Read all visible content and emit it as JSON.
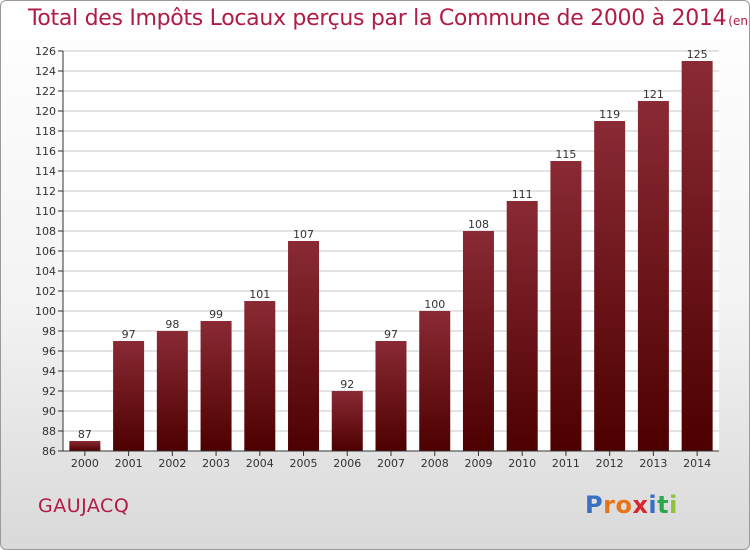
{
  "chart_data": {
    "type": "bar",
    "title": "Total des Impôts Locaux perçus par la Commune de 2000 à 2014",
    "unit_note": "(en milliers d'€)",
    "categories": [
      "2000",
      "2001",
      "2002",
      "2003",
      "2004",
      "2005",
      "2006",
      "2007",
      "2008",
      "2009",
      "2010",
      "2011",
      "2012",
      "2013",
      "2014"
    ],
    "values": [
      87,
      97,
      98,
      99,
      101,
      107,
      92,
      97,
      100,
      108,
      111,
      115,
      119,
      121,
      125
    ],
    "ylim": [
      86,
      126
    ],
    "yticks": [
      86,
      88,
      90,
      92,
      94,
      96,
      98,
      100,
      102,
      104,
      106,
      108,
      110,
      112,
      114,
      116,
      118,
      120,
      122,
      124,
      126
    ],
    "grid": true,
    "bar_color_top": "#8a2a34",
    "bar_color_bottom": "#4d0000"
  },
  "footer": {
    "commune": "GAUJACQ",
    "brand_letters": [
      "P",
      "r",
      "o",
      "x",
      "i",
      "t",
      "i"
    ],
    "brand_colors": [
      "#3a6fc4",
      "#e8741a",
      "#e8741a",
      "#d7262e",
      "#3a6fc4",
      "#2aa84a",
      "#8fc23a"
    ]
  },
  "colors": {
    "title": "#b01c44",
    "grid": "#c8c8c8",
    "axis": "#333333"
  }
}
